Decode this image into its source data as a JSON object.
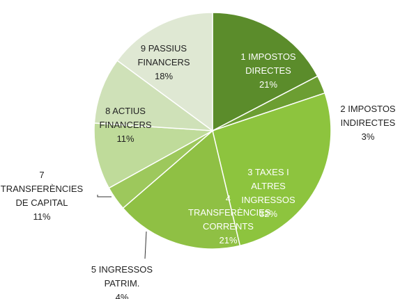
{
  "chart_data": {
    "type": "pie",
    "categories": [
      "1 IMPOSTOS DIRECTES",
      "2 IMPOSTOS INDIRECTES",
      "3 TAXES I ALTRES INGRESSOS",
      "4 TRANSFERÈNCIES CORRENTS",
      "5 INGRESSOS PATRIM.",
      "7 TRANSFERÈNCIES DE CAPITAL",
      "8 ACTIUS FINANCERS",
      "9 PASSIUS FINANCERS"
    ],
    "values": [
      21,
      3,
      32,
      21,
      4,
      11,
      11,
      18
    ],
    "value_labels": [
      "21%",
      "3%",
      "32%",
      "21%",
      "4%",
      "11%",
      "11%",
      "18%"
    ],
    "colors": [
      "#5b8c2b",
      "#6c9e32",
      "#8dc43e",
      "#8fc044",
      "#9dc85c",
      "#bfdb9a",
      "#cfe1b8",
      "#dfe8d3"
    ]
  }
}
